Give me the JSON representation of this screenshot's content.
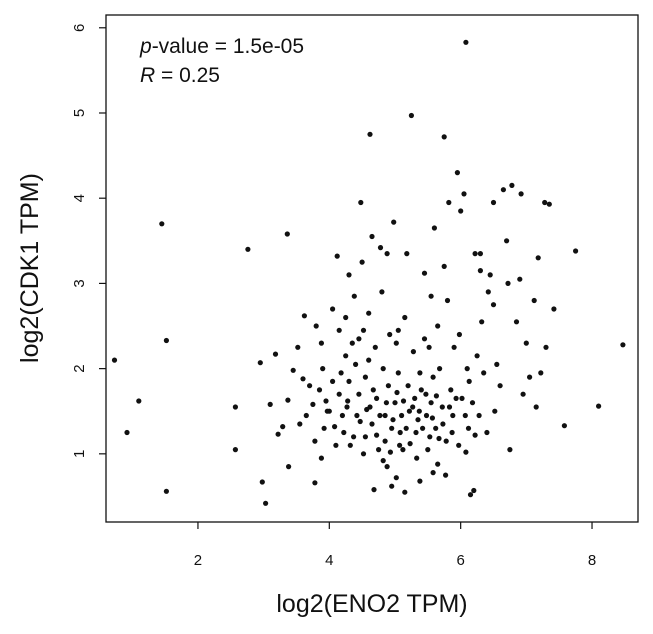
{
  "chart_data": {
    "type": "scatter",
    "title": "",
    "xlabel": "log2(ENO2 TPM)",
    "ylabel": "log2(CDK1 TPM)",
    "xlim": [
      0.6,
      8.7
    ],
    "ylim": [
      0.2,
      6.15
    ],
    "x_ticks": [
      2,
      4,
      6,
      8
    ],
    "y_ticks": [
      1,
      2,
      3,
      4,
      5,
      6
    ],
    "grid": false,
    "legend": "none",
    "point_color": "#111111",
    "annotations": {
      "pvalue_prefix": "p",
      "pvalue_rest": "-value = 1.5e-05",
      "r_prefix": "R",
      "r_rest": " = 0.25"
    },
    "points": [
      [
        0.73,
        2.1
      ],
      [
        0.92,
        1.25
      ],
      [
        1.1,
        1.62
      ],
      [
        1.45,
        3.7
      ],
      [
        1.52,
        2.33
      ],
      [
        1.52,
        0.56
      ],
      [
        2.57,
        1.55
      ],
      [
        2.57,
        1.05
      ],
      [
        2.76,
        3.4
      ],
      [
        2.95,
        2.07
      ],
      [
        2.98,
        0.67
      ],
      [
        3.03,
        0.42
      ],
      [
        3.1,
        1.58
      ],
      [
        3.18,
        2.17
      ],
      [
        3.22,
        1.23
      ],
      [
        3.29,
        1.32
      ],
      [
        3.36,
        3.58
      ],
      [
        3.37,
        1.63
      ],
      [
        3.38,
        0.85
      ],
      [
        3.45,
        1.98
      ],
      [
        3.62,
        2.62
      ],
      [
        3.52,
        2.25
      ],
      [
        3.55,
        1.35
      ],
      [
        3.6,
        1.88
      ],
      [
        3.65,
        1.45
      ],
      [
        3.7,
        1.8
      ],
      [
        3.75,
        1.58
      ],
      [
        3.78,
        0.66
      ],
      [
        3.78,
        1.15
      ],
      [
        3.8,
        2.5
      ],
      [
        3.85,
        1.75
      ],
      [
        3.88,
        0.95
      ],
      [
        3.9,
        2.0
      ],
      [
        3.95,
        1.62
      ],
      [
        3.92,
        1.3
      ],
      [
        4.05,
        2.7
      ],
      [
        4.0,
        1.5
      ],
      [
        4.05,
        1.85
      ],
      [
        4.1,
        1.1
      ],
      [
        4.12,
        3.32
      ],
      [
        4.15,
        2.45
      ],
      [
        4.18,
        1.95
      ],
      [
        4.2,
        1.45
      ],
      [
        4.22,
        1.25
      ],
      [
        4.25,
        2.15
      ],
      [
        4.28,
        1.62
      ],
      [
        4.3,
        1.85
      ],
      [
        4.32,
        1.1
      ],
      [
        4.35,
        2.3
      ],
      [
        4.38,
        2.85
      ],
      [
        4.4,
        2.05
      ],
      [
        4.42,
        1.45
      ],
      [
        4.45,
        1.7
      ],
      [
        4.48,
        3.95
      ],
      [
        4.5,
        3.25
      ],
      [
        4.52,
        2.45
      ],
      [
        4.55,
        1.9
      ],
      [
        4.55,
        1.2
      ],
      [
        4.6,
        2.1
      ],
      [
        4.62,
        1.55
      ],
      [
        4.62,
        4.75
      ],
      [
        4.65,
        3.55
      ],
      [
        4.65,
        1.35
      ],
      [
        4.68,
        0.58
      ],
      [
        4.7,
        2.25
      ],
      [
        4.72,
        1.65
      ],
      [
        4.75,
        1.05
      ],
      [
        4.78,
        3.42
      ],
      [
        4.8,
        2.9
      ],
      [
        4.82,
        2.0
      ],
      [
        4.85,
        1.45
      ],
      [
        4.85,
        1.15
      ],
      [
        4.88,
        3.35
      ],
      [
        4.9,
        1.8
      ],
      [
        4.92,
        2.4
      ],
      [
        4.95,
        1.3
      ],
      [
        4.95,
        0.62
      ],
      [
        4.98,
        3.72
      ],
      [
        5.0,
        1.6
      ],
      [
        5.02,
        2.3
      ],
      [
        5.05,
        1.95
      ],
      [
        5.08,
        1.25
      ],
      [
        5.1,
        1.45
      ],
      [
        5.12,
        1.05
      ],
      [
        5.15,
        0.55
      ],
      [
        5.18,
        3.35
      ],
      [
        5.2,
        1.8
      ],
      [
        5.22,
        1.5
      ],
      [
        5.25,
        4.97
      ],
      [
        5.28,
        2.2
      ],
      [
        5.3,
        1.65
      ],
      [
        5.32,
        1.25
      ],
      [
        5.35,
        1.4
      ],
      [
        5.38,
        1.95
      ],
      [
        5.4,
        1.75
      ],
      [
        5.45,
        3.12
      ],
      [
        5.48,
        1.45
      ],
      [
        5.5,
        1.05
      ],
      [
        5.52,
        2.25
      ],
      [
        5.55,
        1.6
      ],
      [
        5.58,
        1.9
      ],
      [
        5.6,
        3.65
      ],
      [
        5.62,
        1.3
      ],
      [
        5.65,
        0.88
      ],
      [
        5.68,
        2.0
      ],
      [
        5.72,
        1.55
      ],
      [
        5.75,
        4.72
      ],
      [
        5.78,
        1.15
      ],
      [
        5.8,
        2.8
      ],
      [
        5.82,
        3.95
      ],
      [
        5.85,
        1.75
      ],
      [
        5.88,
        1.45
      ],
      [
        5.9,
        2.25
      ],
      [
        5.95,
        4.3
      ],
      [
        5.98,
        2.4
      ],
      [
        6.0,
        3.85
      ],
      [
        6.02,
        1.65
      ],
      [
        6.05,
        4.05
      ],
      [
        6.08,
        5.83
      ],
      [
        6.1,
        2.0
      ],
      [
        6.12,
        1.3
      ],
      [
        6.15,
        0.52
      ],
      [
        6.18,
        1.6
      ],
      [
        6.2,
        0.57
      ],
      [
        6.22,
        3.35
      ],
      [
        6.25,
        2.15
      ],
      [
        6.28,
        1.45
      ],
      [
        6.3,
        3.15
      ],
      [
        6.32,
        2.55
      ],
      [
        6.35,
        1.95
      ],
      [
        6.4,
        1.25
      ],
      [
        6.45,
        3.1
      ],
      [
        6.5,
        2.75
      ],
      [
        6.52,
        1.5
      ],
      [
        6.55,
        2.05
      ],
      [
        6.6,
        1.8
      ],
      [
        6.65,
        4.1
      ],
      [
        6.7,
        3.5
      ],
      [
        6.72,
        3.0
      ],
      [
        6.75,
        1.05
      ],
      [
        6.78,
        4.15
      ],
      [
        6.85,
        2.55
      ],
      [
        6.92,
        4.05
      ],
      [
        7.0,
        2.3
      ],
      [
        7.05,
        1.9
      ],
      [
        7.12,
        2.8
      ],
      [
        7.18,
        3.3
      ],
      [
        7.22,
        1.95
      ],
      [
        7.28,
        3.95
      ],
      [
        7.3,
        2.25
      ],
      [
        7.35,
        3.93
      ],
      [
        7.42,
        2.7
      ],
      [
        7.58,
        1.33
      ],
      [
        7.75,
        3.38
      ],
      [
        8.1,
        1.56
      ],
      [
        8.47,
        2.28
      ],
      [
        3.97,
        1.5
      ],
      [
        4.08,
        1.32
      ],
      [
        4.27,
        1.55
      ],
      [
        4.37,
        1.2
      ],
      [
        4.47,
        1.38
      ],
      [
        4.52,
        1.0
      ],
      [
        4.57,
        1.52
      ],
      [
        4.67,
        1.75
      ],
      [
        4.72,
        1.22
      ],
      [
        4.77,
        1.45
      ],
      [
        4.82,
        0.92
      ],
      [
        4.87,
        1.6
      ],
      [
        4.93,
        1.02
      ],
      [
        4.97,
        1.4
      ],
      [
        5.03,
        1.72
      ],
      [
        5.07,
        1.1
      ],
      [
        5.13,
        1.62
      ],
      [
        5.17,
        1.3
      ],
      [
        5.23,
        1.12
      ],
      [
        5.27,
        1.55
      ],
      [
        5.33,
        0.95
      ],
      [
        5.37,
        1.5
      ],
      [
        5.42,
        1.3
      ],
      [
        5.47,
        1.7
      ],
      [
        5.53,
        1.2
      ],
      [
        5.57,
        1.42
      ],
      [
        5.63,
        1.68
      ],
      [
        5.67,
        1.18
      ],
      [
        5.73,
        1.35
      ],
      [
        5.77,
        0.75
      ],
      [
        5.83,
        1.55
      ],
      [
        5.87,
        1.25
      ],
      [
        5.93,
        1.65
      ],
      [
        5.97,
        1.1
      ],
      [
        6.07,
        1.45
      ],
      [
        6.13,
        1.85
      ],
      [
        5.05,
        2.45
      ],
      [
        5.15,
        2.6
      ],
      [
        5.45,
        2.35
      ],
      [
        5.65,
        2.5
      ],
      [
        5.75,
        3.2
      ],
      [
        5.55,
        2.85
      ],
      [
        4.25,
        2.6
      ],
      [
        4.3,
        3.1
      ],
      [
        4.6,
        2.65
      ],
      [
        4.45,
        2.35
      ],
      [
        3.88,
        2.3
      ],
      [
        4.15,
        1.7
      ],
      [
        6.5,
        3.95
      ],
      [
        6.3,
        3.35
      ],
      [
        6.9,
        3.05
      ],
      [
        6.95,
        1.7
      ],
      [
        7.15,
        1.55
      ],
      [
        6.42,
        2.9
      ],
      [
        6.08,
        1.02
      ],
      [
        6.22,
        1.22
      ],
      [
        5.02,
        0.72
      ],
      [
        4.88,
        0.85
      ],
      [
        5.38,
        0.68
      ],
      [
        5.58,
        0.78
      ]
    ]
  }
}
